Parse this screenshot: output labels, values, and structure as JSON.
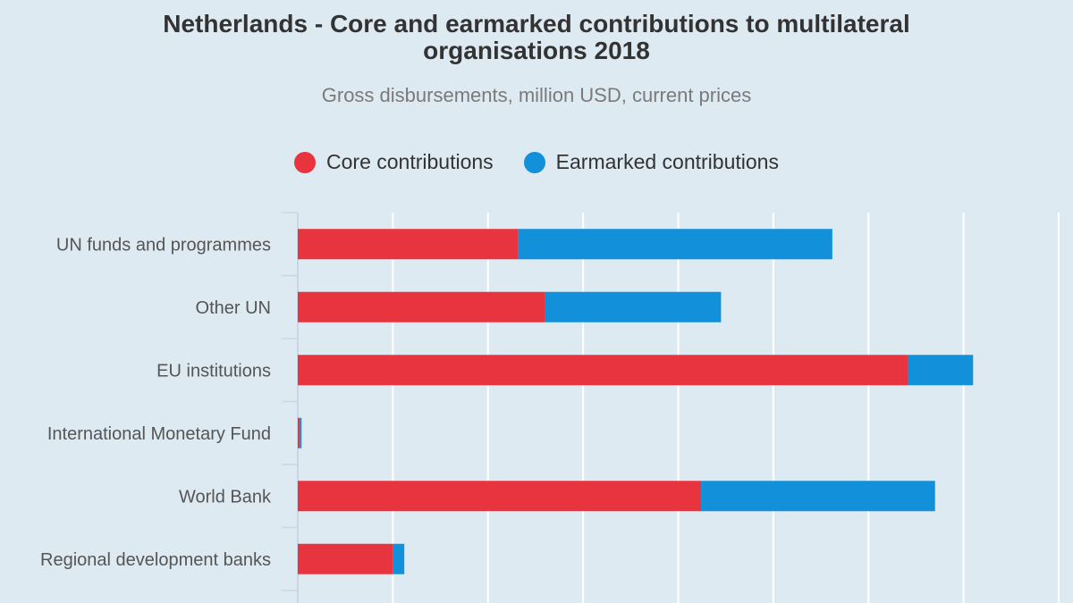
{
  "title_line1": "Netherlands - Core and earmarked contributions to multilateral",
  "title_line2": "organisations 2018",
  "subtitle": "Gross disbursements, million USD, current prices",
  "colors": {
    "core": "#e8343f",
    "earmarked": "#1290d9",
    "grid": "#ffffff",
    "axis": "#c8d6e6",
    "background": "#deeaf2"
  },
  "chart_data": {
    "type": "bar",
    "orientation": "horizontal",
    "stacked": true,
    "title": "Netherlands - Core and earmarked contributions to multilateral organisations 2018",
    "subtitle": "Gross disbursements, million USD, current prices",
    "categories": [
      "UN funds and programmes",
      "Other UN",
      "EU institutions",
      "International Monetary Fund",
      "World Bank",
      "Regional development banks"
    ],
    "series": [
      {
        "name": "Core contributions",
        "values": [
          232,
          260,
          642,
          2,
          424,
          100
        ]
      },
      {
        "name": "Earmarked contributions",
        "values": [
          330,
          185,
          68,
          2,
          246,
          12
        ]
      }
    ],
    "xlim": [
      0,
      800
    ],
    "grid": true,
    "legend_position": "top"
  }
}
